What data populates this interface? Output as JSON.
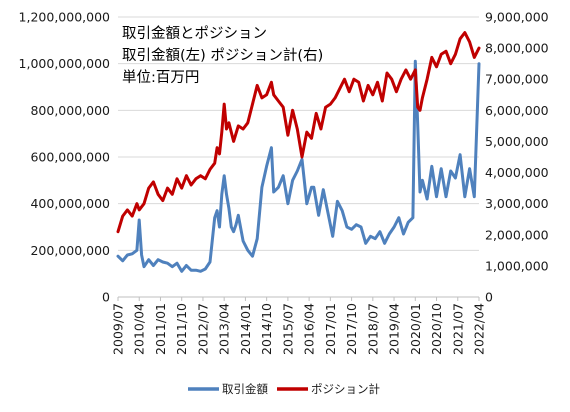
{
  "chart_data": {
    "type": "line",
    "title_lines": [
      "取引金額とポジション",
      "取引金額(左) ポジション計(右)",
      "単位:百万円"
    ],
    "y_left": {
      "min": 0,
      "max": 1200000000,
      "ticks": [
        "0",
        "200,000,000",
        "400,000,000",
        "600,000,000",
        "800,000,000",
        "1,000,000,000",
        "1,200,000,000"
      ]
    },
    "y_right": {
      "min": 0,
      "max": 9000000,
      "ticks": [
        "0",
        "1,000,000",
        "2,000,000",
        "3,000,000",
        "4,000,000",
        "5,000,000",
        "6,000,000",
        "7,000,000",
        "8,000,000",
        "9,000,000"
      ]
    },
    "x_range": [
      "2009-07",
      "2022-04"
    ],
    "x_ticks": [
      "2009/07",
      "2010/04",
      "2011/01",
      "2011/10",
      "2012/07",
      "2013/04",
      "2014/01",
      "2014/10",
      "2015/07",
      "2016/04",
      "2017/01",
      "2017/10",
      "2018/07",
      "2019/04",
      "2020/01",
      "2020/10",
      "2021/07",
      "2022/04"
    ],
    "grid": true,
    "legend_position": "bottom",
    "series": [
      {
        "name": "取引金額",
        "axis": "left",
        "color": "#4f81bd",
        "x": [
          "2009-07",
          "2009-09",
          "2009-11",
          "2010-01",
          "2010-03",
          "2010-04",
          "2010-05",
          "2010-06",
          "2010-08",
          "2010-10",
          "2010-12",
          "2011-02",
          "2011-04",
          "2011-06",
          "2011-08",
          "2011-10",
          "2011-12",
          "2012-02",
          "2012-04",
          "2012-06",
          "2012-08",
          "2012-10",
          "2012-12",
          "2013-01",
          "2013-02",
          "2013-03",
          "2013-04",
          "2013-05",
          "2013-06",
          "2013-07",
          "2013-08",
          "2013-09",
          "2013-10",
          "2013-12",
          "2014-02",
          "2014-04",
          "2014-06",
          "2014-08",
          "2014-10",
          "2014-12",
          "2015-01",
          "2015-03",
          "2015-05",
          "2015-07",
          "2015-09",
          "2015-11",
          "2016-01",
          "2016-03",
          "2016-05",
          "2016-06",
          "2016-08",
          "2016-10",
          "2016-12",
          "2017-02",
          "2017-04",
          "2017-06",
          "2017-08",
          "2017-10",
          "2017-12",
          "2018-02",
          "2018-04",
          "2018-06",
          "2018-08",
          "2018-10",
          "2018-12",
          "2019-02",
          "2019-04",
          "2019-06",
          "2019-08",
          "2019-10",
          "2019-12",
          "2020-01",
          "2020-02",
          "2020-03",
          "2020-04",
          "2020-06",
          "2020-08",
          "2020-10",
          "2020-12",
          "2021-02",
          "2021-04",
          "2021-06",
          "2021-08",
          "2021-10",
          "2021-12",
          "2022-02",
          "2022-04"
        ],
        "values": [
          175000000,
          155000000,
          180000000,
          185000000,
          200000000,
          330000000,
          180000000,
          130000000,
          160000000,
          135000000,
          160000000,
          150000000,
          145000000,
          130000000,
          145000000,
          110000000,
          135000000,
          115000000,
          115000000,
          110000000,
          120000000,
          150000000,
          340000000,
          370000000,
          300000000,
          440000000,
          520000000,
          440000000,
          380000000,
          300000000,
          280000000,
          310000000,
          350000000,
          240000000,
          200000000,
          175000000,
          250000000,
          470000000,
          560000000,
          640000000,
          450000000,
          470000000,
          520000000,
          400000000,
          500000000,
          540000000,
          590000000,
          400000000,
          470000000,
          470000000,
          350000000,
          460000000,
          360000000,
          260000000,
          410000000,
          370000000,
          300000000,
          290000000,
          310000000,
          300000000,
          230000000,
          260000000,
          250000000,
          280000000,
          230000000,
          270000000,
          300000000,
          340000000,
          270000000,
          320000000,
          340000000,
          1010000000,
          740000000,
          450000000,
          500000000,
          420000000,
          560000000,
          430000000,
          550000000,
          430000000,
          540000000,
          510000000,
          610000000,
          430000000,
          550000000,
          430000000,
          1000000000
        ]
      },
      {
        "name": "ポジション計",
        "axis": "right",
        "color": "#c00000",
        "x": [
          "2009-07",
          "2009-09",
          "2009-11",
          "2010-01",
          "2010-03",
          "2010-04",
          "2010-06",
          "2010-08",
          "2010-10",
          "2010-12",
          "2011-02",
          "2011-04",
          "2011-06",
          "2011-08",
          "2011-10",
          "2011-12",
          "2012-02",
          "2012-04",
          "2012-06",
          "2012-08",
          "2012-10",
          "2012-12",
          "2013-01",
          "2013-02",
          "2013-03",
          "2013-04",
          "2013-05",
          "2013-06",
          "2013-08",
          "2013-10",
          "2013-12",
          "2014-02",
          "2014-04",
          "2014-06",
          "2014-08",
          "2014-10",
          "2014-12",
          "2015-01",
          "2015-03",
          "2015-05",
          "2015-07",
          "2015-09",
          "2015-11",
          "2016-01",
          "2016-03",
          "2016-05",
          "2016-07",
          "2016-09",
          "2016-11",
          "2017-01",
          "2017-03",
          "2017-05",
          "2017-07",
          "2017-09",
          "2017-11",
          "2018-01",
          "2018-03",
          "2018-05",
          "2018-07",
          "2018-09",
          "2018-11",
          "2019-01",
          "2019-03",
          "2019-05",
          "2019-07",
          "2019-09",
          "2019-11",
          "2020-01",
          "2020-02",
          "2020-03",
          "2020-04",
          "2020-06",
          "2020-08",
          "2020-10",
          "2020-12",
          "2021-02",
          "2021-04",
          "2021-06",
          "2021-08",
          "2021-10",
          "2021-12",
          "2022-02",
          "2022-04"
        ],
        "values": [
          2100000,
          2600000,
          2800000,
          2600000,
          3000000,
          2800000,
          3000000,
          3500000,
          3700000,
          3300000,
          3100000,
          3500000,
          3300000,
          3800000,
          3500000,
          3900000,
          3600000,
          3800000,
          3900000,
          3800000,
          4100000,
          4300000,
          4800000,
          4600000,
          5300000,
          6200000,
          5400000,
          5600000,
          5000000,
          5500000,
          5400000,
          5600000,
          6200000,
          6800000,
          6400000,
          6500000,
          6900000,
          6500000,
          6300000,
          6100000,
          5200000,
          6000000,
          5400000,
          4500000,
          5300000,
          5100000,
          5900000,
          5400000,
          6100000,
          6200000,
          6400000,
          6700000,
          7000000,
          6600000,
          7000000,
          6900000,
          6300000,
          6800000,
          6500000,
          6900000,
          6300000,
          7200000,
          7000000,
          6600000,
          7000000,
          7300000,
          7000000,
          7300000,
          6100000,
          6000000,
          6400000,
          7000000,
          7700000,
          7400000,
          7800000,
          7900000,
          7500000,
          7800000,
          8300000,
          8500000,
          8200000,
          7700000,
          8000000
        ]
      }
    ]
  }
}
